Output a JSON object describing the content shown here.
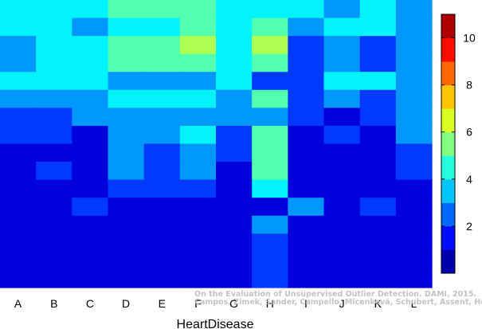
{
  "chart_data": {
    "type": "heatmap",
    "title": "",
    "xlabel": "HeartDisease",
    "ylabel": "",
    "categories": [
      "A",
      "B",
      "C",
      "D",
      "E",
      "F",
      "G",
      "H",
      "I",
      "J",
      "K",
      "L"
    ],
    "colorbar": {
      "ticks": [
        2,
        4,
        6,
        8,
        10
      ],
      "range": [
        0,
        11
      ],
      "colormap": "jet"
    },
    "grid": false,
    "legend": "colorbar-right",
    "rows_top_to_bottom": [
      [
        4,
        4,
        4,
        5,
        5,
        5,
        4,
        4,
        4,
        3,
        4,
        3
      ],
      [
        4,
        4,
        3,
        4,
        4,
        5,
        4,
        5,
        3,
        4,
        4,
        3
      ],
      [
        3,
        4,
        4,
        5,
        5,
        6,
        4,
        6,
        2,
        3,
        2,
        3
      ],
      [
        3,
        4,
        4,
        5,
        5,
        5,
        4,
        5,
        2,
        3,
        2,
        3
      ],
      [
        4,
        4,
        4,
        3,
        3,
        3,
        4,
        2,
        2,
        4,
        4,
        3
      ],
      [
        3,
        3,
        3,
        4,
        4,
        4,
        3,
        5,
        2,
        3,
        2,
        3
      ],
      [
        2,
        2,
        3,
        3,
        3,
        3,
        3,
        3,
        2,
        1,
        2,
        3
      ],
      [
        2,
        2,
        1,
        3,
        3,
        4,
        2,
        5,
        1,
        2,
        1,
        3
      ],
      [
        1,
        1,
        1,
        3,
        2,
        3,
        2,
        5,
        1,
        1,
        1,
        2
      ],
      [
        1,
        2,
        1,
        3,
        2,
        3,
        1,
        5,
        1,
        1,
        1,
        2
      ],
      [
        1,
        1,
        1,
        2,
        2,
        2,
        1,
        4,
        1,
        1,
        1,
        1
      ],
      [
        1,
        1,
        2,
        1,
        1,
        1,
        1,
        1,
        3,
        1,
        2,
        1
      ],
      [
        1,
        1,
        1,
        1,
        1,
        1,
        1,
        3,
        1,
        1,
        1,
        1
      ],
      [
        1,
        1,
        1,
        1,
        1,
        1,
        1,
        2,
        1,
        1,
        1,
        1
      ],
      [
        1,
        1,
        1,
        1,
        1,
        1,
        1,
        2,
        1,
        1,
        1,
        1
      ],
      [
        1,
        1,
        1,
        1,
        1,
        1,
        1,
        2,
        1,
        1,
        1,
        1
      ]
    ]
  },
  "watermark": {
    "line1": "On the Evaluation of Unsupervised Outlier Detection. DAMI, 2015.",
    "line2": "Campos, Zimek, Sander, Campello, Micenková, Schubert, Assent, Houle"
  }
}
